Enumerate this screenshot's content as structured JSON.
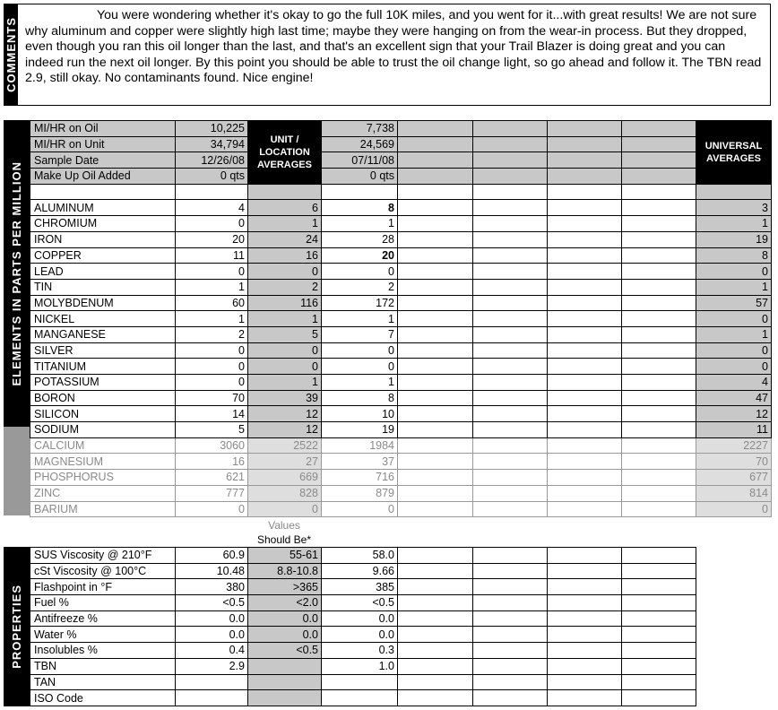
{
  "comments": {
    "label": "COMMENTS",
    "text": "You were wondering whether it's okay to go the full 10K miles, and you went for it...with great results! We are not sure why aluminum and copper were slightly high last time; maybe they were hanging on from the wear-in process. But they dropped, even though you ran this oil longer than the last, and that's an excellent sign that your Trail Blazer is doing great and you can indeed run the next oil longer. By this point you should be able to trust the oil change light, so go ahead and follow it. The TBN read 2.9, still okay. No contaminants found. Nice engine!"
  },
  "elements": {
    "side_label": "ELEMENTS IN PARTS PER MILLION",
    "unit_avg_header": "UNIT / LOCATION AVERAGES",
    "universal_header": "UNIVERSAL AVERAGES",
    "info_rows": [
      {
        "label": "MI/HR on Oil",
        "current": "10,225",
        "previous": "7,738"
      },
      {
        "label": "MI/HR on Unit",
        "current": "34,794",
        "previous": "24,569"
      },
      {
        "label": "Sample Date",
        "current": "12/26/08",
        "previous": "07/11/08"
      },
      {
        "label": "Make Up Oil Added",
        "current": "0 qts",
        "previous": "0 qts"
      }
    ],
    "rows": [
      {
        "name": "ALUMINUM",
        "current": "4",
        "avg": "6",
        "previous": "8",
        "universal": "3",
        "previous_bold": true
      },
      {
        "name": "CHROMIUM",
        "current": "0",
        "avg": "1",
        "previous": "1",
        "universal": "1"
      },
      {
        "name": "IRON",
        "current": "20",
        "avg": "24",
        "previous": "28",
        "universal": "19"
      },
      {
        "name": "COPPER",
        "current": "11",
        "avg": "16",
        "previous": "20",
        "universal": "8",
        "previous_bold": true
      },
      {
        "name": "LEAD",
        "current": "0",
        "avg": "0",
        "previous": "0",
        "universal": "0"
      },
      {
        "name": "TIN",
        "current": "1",
        "avg": "2",
        "previous": "2",
        "universal": "1"
      },
      {
        "name": "MOLYBDENUM",
        "current": "60",
        "avg": "116",
        "previous": "172",
        "universal": "57"
      },
      {
        "name": "NICKEL",
        "current": "1",
        "avg": "1",
        "previous": "1",
        "universal": "0"
      },
      {
        "name": "MANGANESE",
        "current": "2",
        "avg": "5",
        "previous": "7",
        "universal": "1"
      },
      {
        "name": "SILVER",
        "current": "0",
        "avg": "0",
        "previous": "0",
        "universal": "0"
      },
      {
        "name": "TITANIUM",
        "current": "0",
        "avg": "0",
        "previous": "0",
        "universal": "0"
      },
      {
        "name": "POTASSIUM",
        "current": "0",
        "avg": "1",
        "previous": "1",
        "universal": "4"
      },
      {
        "name": "BORON",
        "current": "70",
        "avg": "39",
        "previous": "8",
        "universal": "47"
      },
      {
        "name": "SILICON",
        "current": "14",
        "avg": "12",
        "previous": "10",
        "universal": "12"
      },
      {
        "name": "SODIUM",
        "current": "5",
        "avg": "12",
        "previous": "19",
        "universal": "11"
      },
      {
        "name": "CALCIUM",
        "current": "3060",
        "avg": "2522",
        "previous": "1984",
        "universal": "2227",
        "faded": true
      },
      {
        "name": "MAGNESIUM",
        "current": "16",
        "avg": "27",
        "previous": "37",
        "universal": "70",
        "faded": true
      },
      {
        "name": "PHOSPHORUS",
        "current": "621",
        "avg": "669",
        "previous": "716",
        "universal": "677",
        "faded": true
      },
      {
        "name": "ZINC",
        "current": "777",
        "avg": "828",
        "previous": "879",
        "universal": "814",
        "faded": true
      },
      {
        "name": "BARIUM",
        "current": "0",
        "avg": "0",
        "previous": "0",
        "universal": "0",
        "faded": true
      }
    ]
  },
  "values_note": {
    "line1": "Values",
    "line2": "Should Be*"
  },
  "properties": {
    "side_label": "PROPERTIES",
    "rows": [
      {
        "name": "SUS Viscosity @ 210°F",
        "current": "60.9",
        "should": "55-61",
        "previous": "58.0"
      },
      {
        "name": "cSt Viscosity @ 100°C",
        "current": "10.48",
        "should": "8.8-10.8",
        "previous": "9.66"
      },
      {
        "name": "Flashpoint in °F",
        "current": "380",
        "should": ">365",
        "previous": "385"
      },
      {
        "name": "Fuel %",
        "current": "<0.5",
        "should": "<2.0",
        "previous": "<0.5"
      },
      {
        "name": "Antifreeze %",
        "current": "0.0",
        "should": "0.0",
        "previous": "0.0"
      },
      {
        "name": "Water %",
        "current": "0.0",
        "should": "0.0",
        "previous": "0.0"
      },
      {
        "name": "Insolubles %",
        "current": "0.4",
        "should": "<0.5",
        "previous": "0.3"
      },
      {
        "name": "TBN",
        "current": "2.9",
        "should": "",
        "previous": "1.0"
      },
      {
        "name": "TAN",
        "current": "",
        "should": "",
        "previous": ""
      },
      {
        "name": "ISO Code",
        "current": "",
        "should": "",
        "previous": ""
      }
    ]
  }
}
